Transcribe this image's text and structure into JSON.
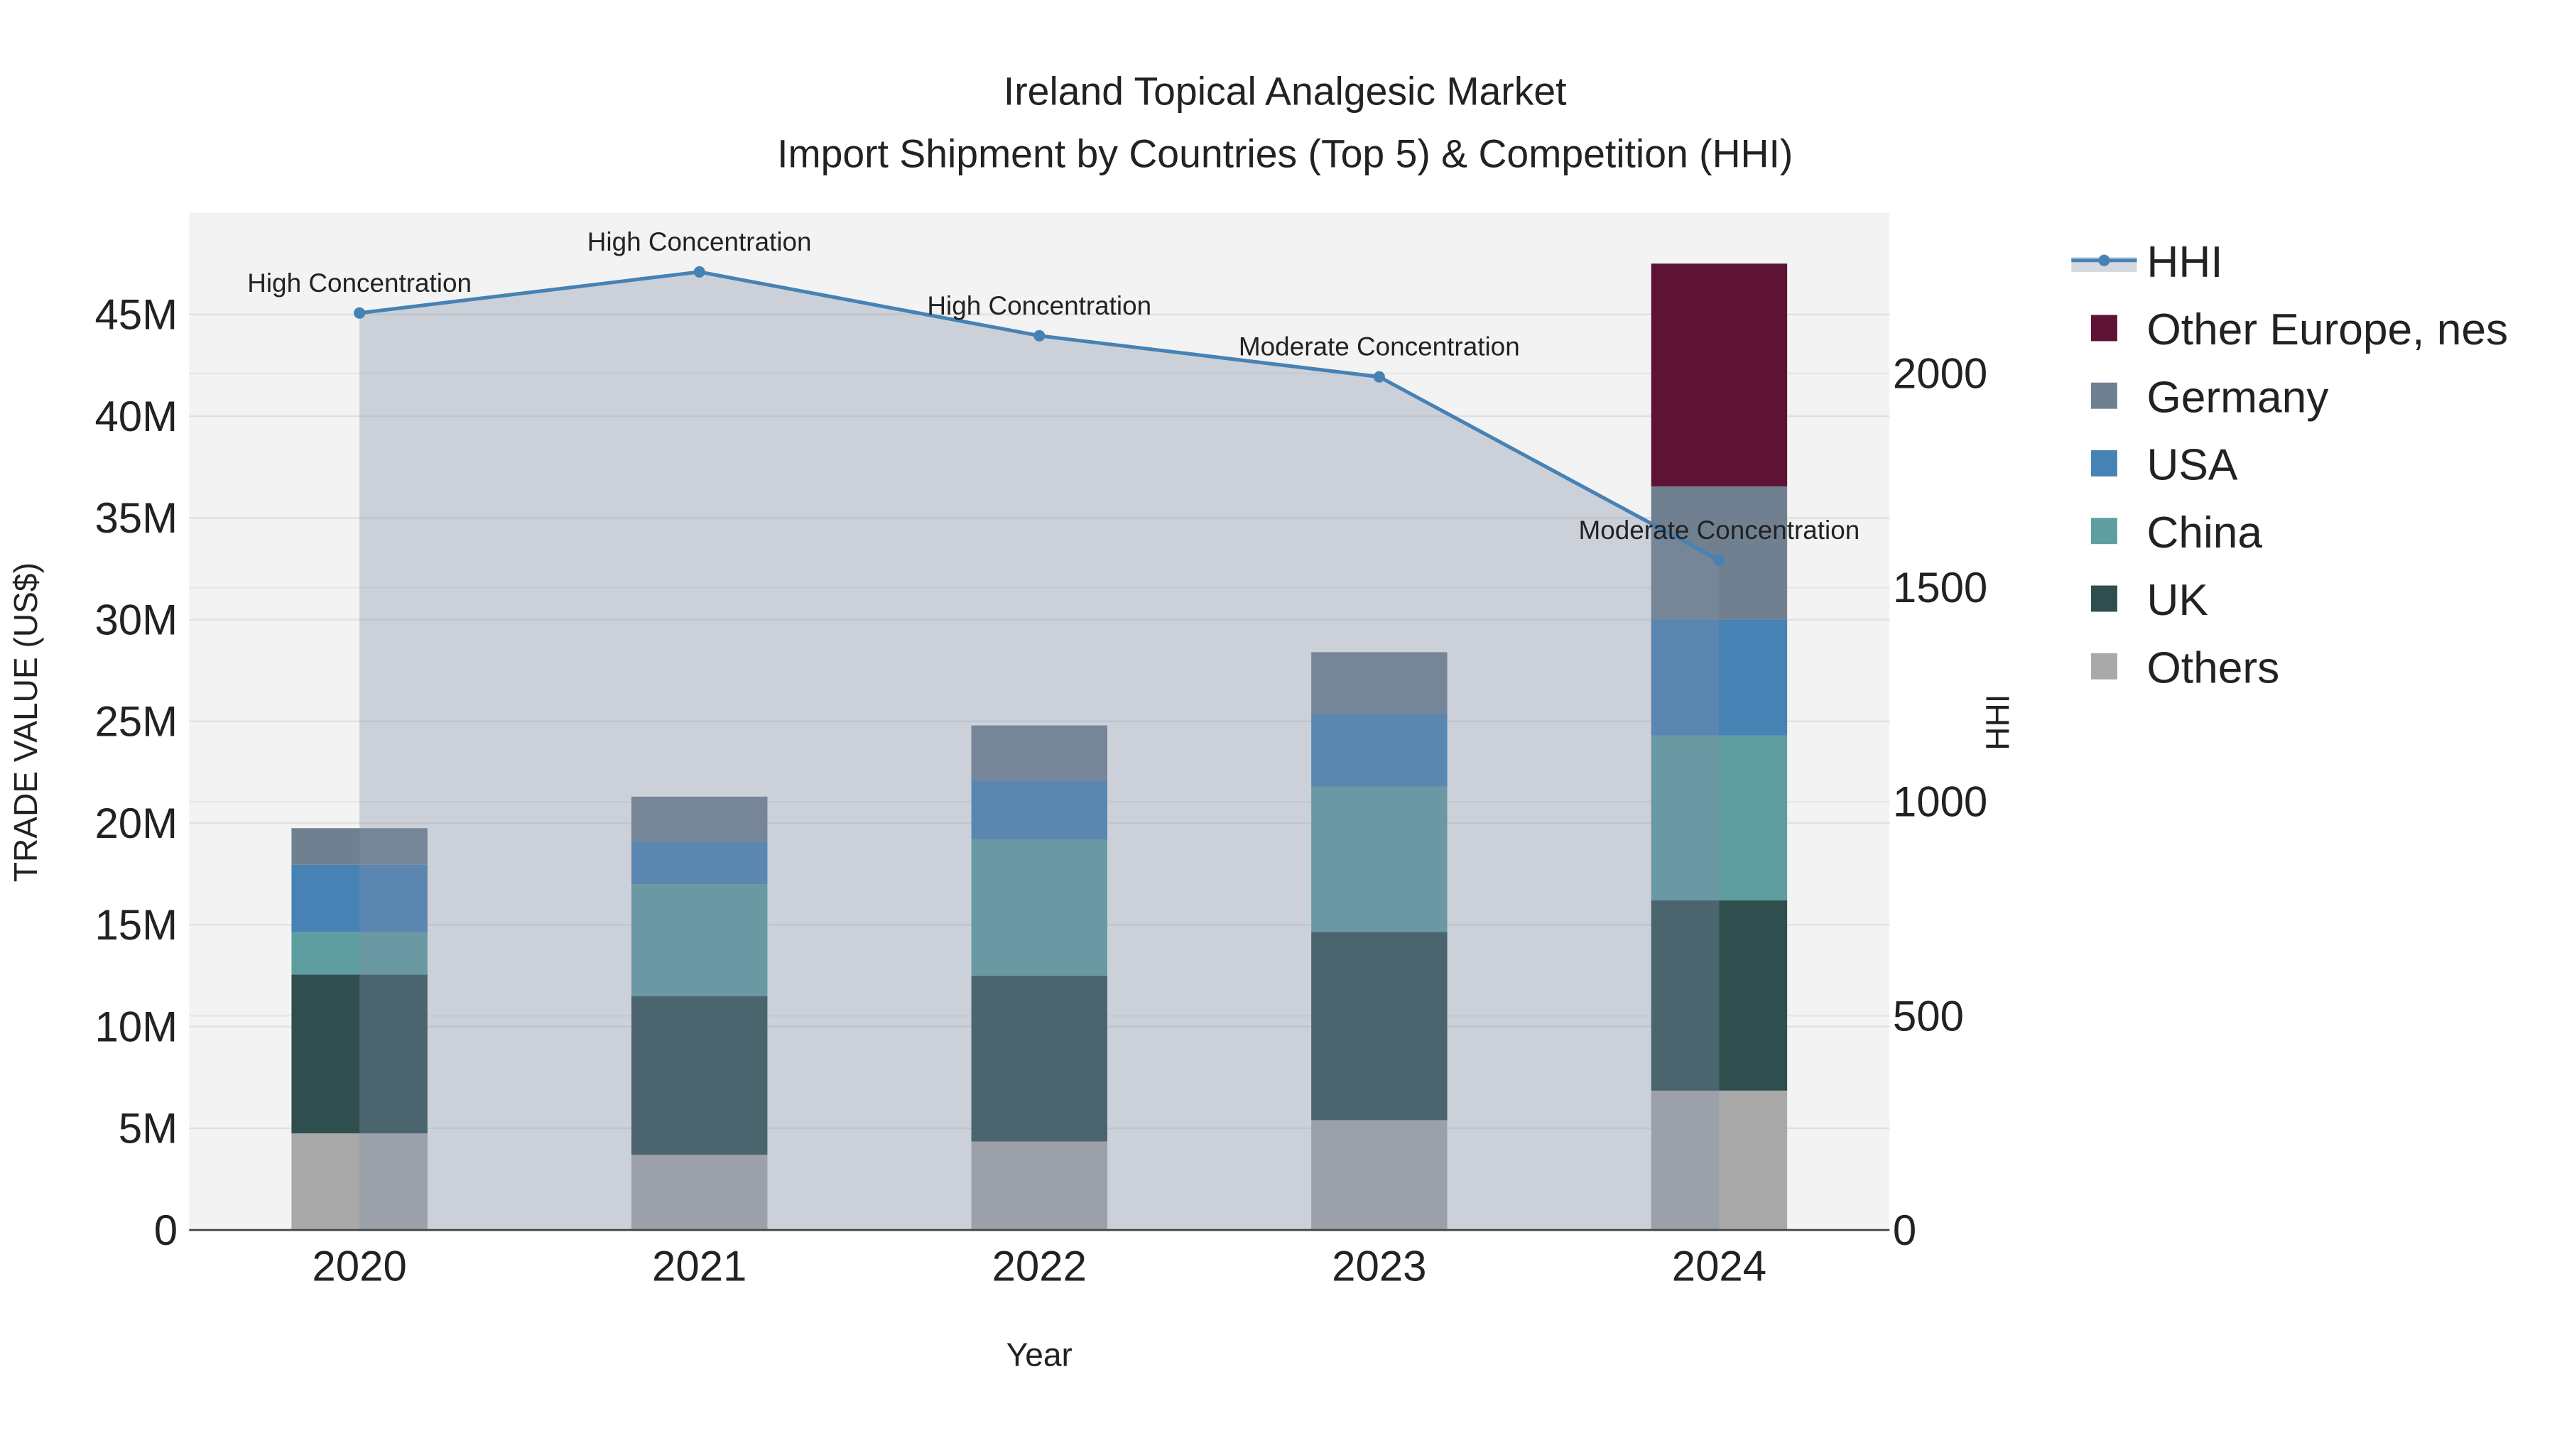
{
  "chart_data": {
    "type": "bar",
    "stacked": true,
    "title": "Ireland Topical Analgesic Market",
    "subtitle": "Import Shipment by Countries (Top 5) & Competition (HHI)",
    "xlabel": "Year",
    "ylabel": "TRADE VALUE (US$)",
    "y2label": "HHI",
    "categories": [
      "2020",
      "2021",
      "2022",
      "2023",
      "2024"
    ],
    "ylim": [
      0,
      49500000
    ],
    "y_ticks": [
      0,
      5000000,
      10000000,
      15000000,
      20000000,
      25000000,
      30000000,
      35000000,
      40000000,
      45000000
    ],
    "y_tick_labels": [
      "0",
      "5M",
      "10M",
      "15M",
      "20M",
      "25M",
      "30M",
      "35M",
      "40M",
      "45M"
    ],
    "y2lim": [
      0,
      2367
    ],
    "y2_ticks": [
      0,
      500,
      1000,
      1500,
      2000
    ],
    "y2_tick_labels": [
      "0",
      "500",
      "1000",
      "1500",
      "2000"
    ],
    "grid": true,
    "legend_position": "right",
    "series": [
      {
        "name": "Others",
        "color": "#a9a9a9",
        "values": [
          4750000,
          3700000,
          4350000,
          5400000,
          6850000
        ]
      },
      {
        "name": "UK",
        "color": "#2f4f4f",
        "values": [
          7800000,
          7800000,
          8150000,
          9250000,
          9350000
        ]
      },
      {
        "name": "China",
        "color": "#5f9ea0",
        "values": [
          2100000,
          5500000,
          6700000,
          7150000,
          8100000
        ]
      },
      {
        "name": "USA",
        "color": "#4682b4",
        "values": [
          3300000,
          2100000,
          2900000,
          3600000,
          5700000
        ]
      },
      {
        "name": "Germany",
        "color": "#708090",
        "values": [
          1800000,
          2200000,
          2700000,
          3000000,
          6550000
        ]
      },
      {
        "name": "Other Europe, nes",
        "color": "#5e1234",
        "values": [
          0,
          0,
          0,
          0,
          10950000
        ]
      }
    ],
    "hhi": {
      "name": "HHI",
      "color": "#4682b4",
      "values": [
        2141,
        2237,
        2088,
        1992,
        1564
      ],
      "annotations": [
        "High Concentration",
        "High Concentration",
        "High Concentration",
        "Moderate Concentration",
        "Moderate Concentration"
      ]
    },
    "legend": [
      "HHI",
      "Other Europe, nes",
      "Germany",
      "USA",
      "China",
      "UK",
      "Others"
    ]
  }
}
